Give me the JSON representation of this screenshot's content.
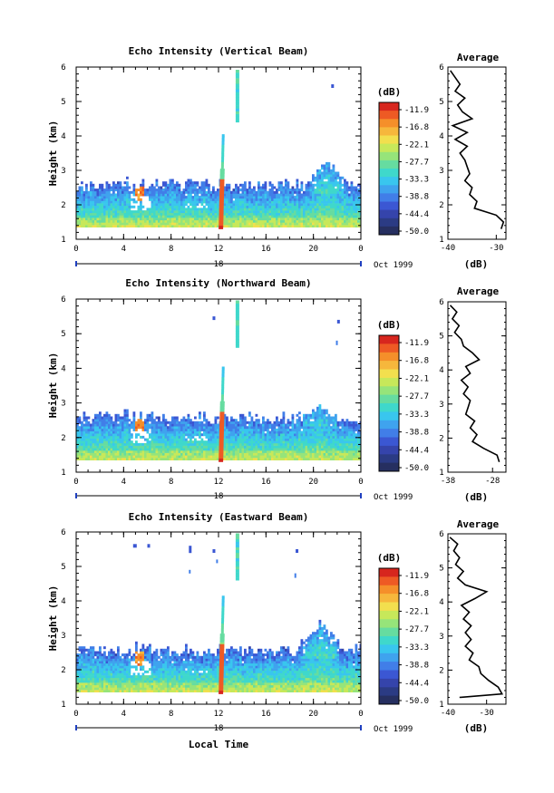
{
  "xlabel_bottom": "Local Time",
  "date_label": "Oct 1999",
  "day_label": "18",
  "colorbar_unit": "(dB)",
  "colorbar_ticks": [
    "-11.9",
    "-16.8",
    "-22.1",
    "-27.7",
    "-33.3",
    "-38.8",
    "-44.4",
    "-50.0"
  ],
  "average_title": "Average",
  "average_xlabel": "(dB)",
  "chart_data": [
    {
      "type": "heatmap",
      "title": "Echo Intensity (Vertical Beam)",
      "ylabel": "Height (km)",
      "xlabel": "",
      "xlim": [
        0,
        24
      ],
      "ylim": [
        1,
        6
      ],
      "xticks": [
        "0",
        "4",
        "8",
        "12",
        "16",
        "20",
        "0"
      ],
      "yticks": [
        "1",
        "2",
        "3",
        "4",
        "5",
        "6"
      ],
      "colorbar": {
        "label": "(dB)",
        "range": [
          -50,
          -11.9
        ]
      },
      "features": {
        "column_hour": 12.2,
        "column_top_km": 4.0,
        "cap_hour": 13.6,
        "cap_range_km": [
          4.4,
          5.9
        ],
        "blob_hour": 5.3,
        "blob_km": 2.3,
        "hump_hour": 21,
        "hump_top_km": 3.2,
        "speck": {
          "hour": 21.5,
          "km": 5.5
        }
      },
      "profile": {
        "title": "Average",
        "xlabel": "(dB)",
        "xlim": [
          -40,
          -28
        ],
        "xticks": [
          "-40",
          "-30"
        ],
        "height": [
          1.3,
          1.5,
          1.7,
          1.9,
          2.1,
          2.3,
          2.5,
          2.7,
          2.9,
          3.1,
          3.3,
          3.5,
          3.7,
          3.9,
          4.1,
          4.3,
          4.5,
          4.7,
          4.9,
          5.1,
          5.3,
          5.5,
          5.7,
          5.9
        ],
        "db": [
          -29.0,
          -28.5,
          -30.0,
          -34.5,
          -34.0,
          -35.5,
          -35.0,
          -36.5,
          -35.5,
          -36.0,
          -36.5,
          -37.5,
          -36.0,
          -38.5,
          -36.0,
          -39.0,
          -35.0,
          -37.0,
          -38.0,
          -36.5,
          -38.5,
          -37.5,
          -38.5,
          -39.5
        ]
      }
    },
    {
      "type": "heatmap",
      "title": "Echo Intensity (Northward Beam)",
      "ylabel": "Height (km)",
      "xlabel": "",
      "xlim": [
        0,
        24
      ],
      "ylim": [
        1,
        6
      ],
      "xticks": [
        "0",
        "4",
        "8",
        "12",
        "16",
        "20",
        "0"
      ],
      "yticks": [
        "1",
        "2",
        "3",
        "4",
        "5",
        "6"
      ],
      "colorbar": {
        "label": "(dB)",
        "range": [
          -50,
          -11.9
        ]
      },
      "features": {
        "column_hour": 12.2,
        "column_top_km": 4.0,
        "cap_hour": 13.6,
        "cap_range_km": [
          4.6,
          5.9
        ],
        "blob_hour": 5.3,
        "blob_km": 2.3,
        "hump_hour": 20.5,
        "hump_top_km": 2.9,
        "speck": {
          "hour": 22,
          "km": 5.4
        }
      },
      "profile": {
        "title": "Average",
        "xlabel": "(dB)",
        "xlim": [
          -38,
          -25
        ],
        "xticks": [
          "-38",
          "-28"
        ],
        "height": [
          1.3,
          1.5,
          1.7,
          1.9,
          2.1,
          2.3,
          2.5,
          2.7,
          2.9,
          3.1,
          3.3,
          3.5,
          3.7,
          3.9,
          4.1,
          4.3,
          4.5,
          4.7,
          4.9,
          5.1,
          5.3,
          5.5,
          5.7,
          5.9
        ],
        "db": [
          -26.5,
          -27.0,
          -30.0,
          -32.5,
          -31.5,
          -33.0,
          -32.0,
          -34.0,
          -33.5,
          -33.0,
          -34.5,
          -33.5,
          -35.0,
          -33.0,
          -34.0,
          -31.0,
          -32.5,
          -34.5,
          -35.0,
          -36.5,
          -35.5,
          -37.0,
          -36.0,
          -37.5
        ]
      }
    },
    {
      "type": "heatmap",
      "title": "Echo Intensity (Eastward Beam)",
      "ylabel": "Height (km)",
      "xlabel": "Local Time",
      "xlim": [
        0,
        24
      ],
      "ylim": [
        1,
        6
      ],
      "xticks": [
        "0",
        "4",
        "8",
        "12",
        "16",
        "20",
        "0"
      ],
      "yticks": [
        "1",
        "2",
        "3",
        "4",
        "5",
        "6"
      ],
      "colorbar": {
        "label": "(dB)",
        "range": [
          -50,
          -11.9
        ]
      },
      "features": {
        "column_hour": 12.2,
        "column_top_km": 4.1,
        "cap_hour": 13.6,
        "cap_range_km": [
          4.6,
          5.9
        ],
        "blob_hour": 5.3,
        "blob_km": 2.3,
        "hump_hour": 20.5,
        "hump_top_km": 3.3,
        "speck": {
          "hour": 18.5,
          "km": 5.5
        }
      },
      "profile": {
        "title": "Average",
        "xlabel": "(dB)",
        "xlim": [
          -40,
          -25
        ],
        "xticks": [
          "-40",
          "-30"
        ],
        "height": [
          1.2,
          1.3,
          1.5,
          1.7,
          1.9,
          2.1,
          2.3,
          2.5,
          2.7,
          2.9,
          3.1,
          3.3,
          3.5,
          3.7,
          3.9,
          4.1,
          4.3,
          4.5,
          4.7,
          4.9,
          5.1,
          5.3,
          5.5,
          5.7,
          5.9
        ],
        "db": [
          -37.0,
          -26.0,
          -27.0,
          -29.5,
          -31.5,
          -32.0,
          -34.5,
          -33.5,
          -35.5,
          -34.0,
          -35.5,
          -34.0,
          -36.0,
          -34.5,
          -36.5,
          -33.0,
          -30.0,
          -35.5,
          -37.5,
          -36.0,
          -38.0,
          -37.0,
          -38.5,
          -37.5,
          -39.5
        ]
      }
    }
  ]
}
